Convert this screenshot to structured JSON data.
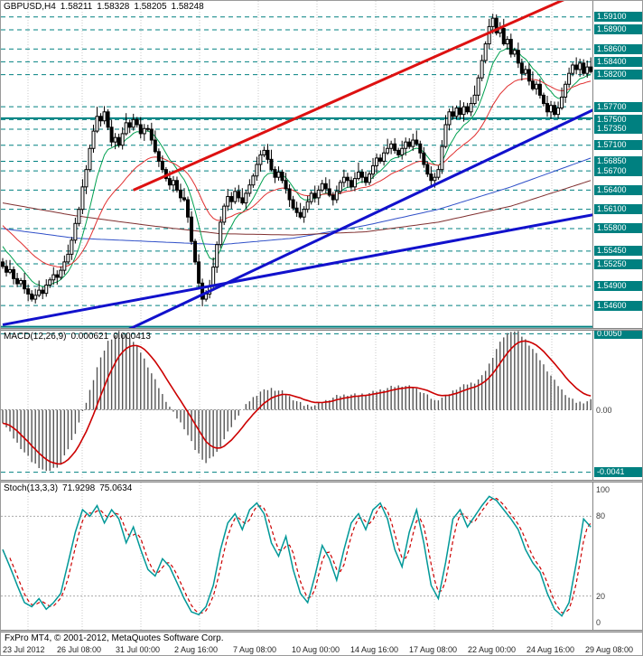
{
  "header": {
    "symbol": "GBPUSD,H4",
    "open": "1.58211",
    "high": "1.58328",
    "low": "1.58205",
    "close": "1.58248"
  },
  "indicators": {
    "macd": {
      "label": "MACD(12,26,9)",
      "value_main": "0.000621",
      "value_signal": "0.000413"
    },
    "stoch": {
      "label": "Stoch(13,3,3)",
      "value_main": "71.9298",
      "value_signal": "75.0634"
    }
  },
  "footer": {
    "copyright": "FxPro MT4, © 2001-2012, MetaQuotes Software Corp."
  },
  "time_axis": {
    "labels": [
      "23 Jul 2012",
      "26 Jul 08:00",
      "31 Jul 00:00",
      "2 Aug 16:00",
      "7 Aug 08:00",
      "10 Aug 00:00",
      "14 Aug 16:00",
      "17 Aug 08:00",
      "22 Aug 00:00",
      "24 Aug 16:00",
      "29 Aug 08:00"
    ]
  },
  "colors": {
    "level_teal": "#008080",
    "grid": "#c8c8c8",
    "bull": "#ffffff",
    "bear": "#000000",
    "wick": "#000000",
    "candle_border": "#000000",
    "trend_red": "#dd1111",
    "trend_blue": "#1111cc",
    "macd_hist": "#555555",
    "signal_red": "#cc0000",
    "stoch_main": "#009898",
    "axis_text": "#3a3a3a",
    "background": "#ffffff"
  },
  "chart_data": {
    "type": "candlestick",
    "symbol": "GBPUSD",
    "timeframe": "H4",
    "main": {
      "y_range": [
        1.5425,
        1.5935
      ],
      "first_open": 1.5528,
      "closes": [
        1.5521,
        1.5512,
        1.5516,
        1.5502,
        1.5494,
        1.5499,
        1.5486,
        1.5478,
        1.547,
        1.5476,
        1.5484,
        1.5479,
        1.5492,
        1.55,
        1.5508,
        1.5504,
        1.5515,
        1.5528,
        1.554,
        1.5562,
        1.5588,
        1.561,
        1.5645,
        1.5672,
        1.5705,
        1.5732,
        1.5755,
        1.5748,
        1.5762,
        1.5738,
        1.5715,
        1.5722,
        1.571,
        1.5728,
        1.5745,
        1.5738,
        1.575,
        1.5742,
        1.5728,
        1.5736,
        1.5735,
        1.5718,
        1.57,
        1.5685,
        1.5672,
        1.5658,
        1.5648,
        1.5655,
        1.564,
        1.5628,
        1.5625,
        1.5598,
        1.556,
        1.5528,
        1.5495,
        1.547,
        1.5478,
        1.549,
        1.552,
        1.5555,
        1.559,
        1.5615,
        1.563,
        1.5622,
        1.5638,
        1.5628,
        1.562,
        1.5635,
        1.5648,
        1.5662,
        1.568,
        1.5695,
        1.5702,
        1.5688,
        1.5672,
        1.566,
        1.5668,
        1.5655,
        1.5642,
        1.5625,
        1.5612,
        1.5605,
        1.5598,
        1.561,
        1.5622,
        1.5635,
        1.5628,
        1.564,
        1.565,
        1.5642,
        1.5632,
        1.5625,
        1.5638,
        1.5652,
        1.566,
        1.5655,
        1.5645,
        1.5658,
        1.5668,
        1.566,
        1.5652,
        1.5665,
        1.5678,
        1.569,
        1.5685,
        1.5698,
        1.5705,
        1.5712,
        1.5702,
        1.5695,
        1.5705,
        1.5715,
        1.5708,
        1.5718,
        1.5712,
        1.5698,
        1.568,
        1.5665,
        1.5655,
        1.566,
        1.5672,
        1.5708,
        1.5742,
        1.5762,
        1.5755,
        1.5768,
        1.5758,
        1.577,
        1.5762,
        1.5775,
        1.5788,
        1.5815,
        1.5842,
        1.5868,
        1.5895,
        1.5908,
        1.5885,
        1.5892,
        1.5868,
        1.5875,
        1.5852,
        1.5858,
        1.5838,
        1.5822,
        1.5828,
        1.581,
        1.5798,
        1.5805,
        1.5788,
        1.5775,
        1.5762,
        1.5772,
        1.5758,
        1.5768,
        1.5785,
        1.5805,
        1.5822,
        1.5835,
        1.5828,
        1.5838,
        1.5822,
        1.5832,
        1.58248
      ],
      "wick_pattern": [
        0.0006,
        0.001,
        0.0015,
        0.0005,
        0.0009,
        0.0004,
        0.0012,
        0.0007
      ],
      "levels_dashed": [
        "1.59100",
        "1.58900",
        "1.58600",
        "1.58400",
        "1.58200",
        "1.57700",
        "1.57500",
        "1.57350",
        "1.57100",
        "1.56850",
        "1.56700",
        "1.56400",
        "1.56100",
        "1.55800",
        "1.55450",
        "1.55250",
        "1.54900",
        "1.54600"
      ],
      "levels_solid": [
        1.5752,
        1.5427
      ],
      "trendlines": [
        {
          "color": "#1111cc",
          "width": 3,
          "from": [
            0,
            1.533
          ],
          "to": [
            163,
            1.5766
          ]
        },
        {
          "color": "#1111cc",
          "width": 3,
          "from": [
            0,
            1.543
          ],
          "to": [
            163,
            1.5602
          ]
        },
        {
          "color": "#dd1111",
          "width": 3,
          "from": [
            36,
            1.564
          ],
          "to": [
            163,
            1.5958
          ]
        }
      ],
      "emas": [
        {
          "period": 9,
          "seed": 1.556,
          "color": "#00a050",
          "width": 1
        },
        {
          "period": 25,
          "seed": 1.559,
          "color": "#e03030",
          "width": 1
        }
      ],
      "ma_lines": [
        {
          "color": "#3050c8",
          "width": 1,
          "points": [
            [
              0,
              1.558
            ],
            [
              20,
              1.5565
            ],
            [
              40,
              1.556
            ],
            [
              60,
              1.5555
            ],
            [
              80,
              1.5565
            ],
            [
              100,
              1.5585
            ],
            [
              120,
              1.561
            ],
            [
              140,
              1.5645
            ],
            [
              162,
              1.569
            ]
          ]
        },
        {
          "color": "#803030",
          "width": 1,
          "points": [
            [
              0,
              1.562
            ],
            [
              20,
              1.56
            ],
            [
              40,
              1.5585
            ],
            [
              60,
              1.5572
            ],
            [
              80,
              1.557
            ],
            [
              100,
              1.5575
            ],
            [
              120,
              1.559
            ],
            [
              140,
              1.5615
            ],
            [
              162,
              1.5655
            ]
          ]
        }
      ]
    },
    "macd": {
      "y_range": [
        -0.0046,
        0.0052
      ],
      "levels": [
        "0.0050",
        "-0.0041"
      ],
      "zero_label": "0.00",
      "keypoints": [
        [
          0,
          -0.0008
        ],
        [
          4,
          -0.0022
        ],
        [
          8,
          -0.0034
        ],
        [
          12,
          -0.0041
        ],
        [
          16,
          -0.0036
        ],
        [
          20,
          -0.0015
        ],
        [
          23,
          0.0005
        ],
        [
          26,
          0.0028
        ],
        [
          29,
          0.0045
        ],
        [
          32,
          0.0051
        ],
        [
          35,
          0.0048
        ],
        [
          38,
          0.0038
        ],
        [
          41,
          0.0024
        ],
        [
          44,
          0.001
        ],
        [
          47,
          -0.0002
        ],
        [
          50,
          -0.0012
        ],
        [
          53,
          -0.0026
        ],
        [
          56,
          -0.0035
        ],
        [
          59,
          -0.0028
        ],
        [
          62,
          -0.0015
        ],
        [
          65,
          -0.0003
        ],
        [
          68,
          0.0006
        ],
        [
          71,
          0.0012
        ],
        [
          74,
          0.0014
        ],
        [
          77,
          0.0012
        ],
        [
          80,
          0.0007
        ],
        [
          83,
          0.0003
        ],
        [
          86,
          0.0003
        ],
        [
          89,
          0.0006
        ],
        [
          92,
          0.0009
        ],
        [
          95,
          0.001
        ],
        [
          98,
          0.001
        ],
        [
          101,
          0.0011
        ],
        [
          104,
          0.0013
        ],
        [
          107,
          0.0015
        ],
        [
          110,
          0.0016
        ],
        [
          113,
          0.0015
        ],
        [
          116,
          0.0011
        ],
        [
          119,
          0.0006
        ],
        [
          122,
          0.0009
        ],
        [
          125,
          0.0014
        ],
        [
          128,
          0.0017
        ],
        [
          130,
          0.0018
        ],
        [
          132,
          0.0022
        ],
        [
          134,
          0.003
        ],
        [
          136,
          0.004
        ],
        [
          138,
          0.0048
        ],
        [
          140,
          0.0052
        ],
        [
          142,
          0.0051
        ],
        [
          144,
          0.0046
        ],
        [
          146,
          0.004
        ],
        [
          148,
          0.0033
        ],
        [
          150,
          0.0026
        ],
        [
          152,
          0.0019
        ],
        [
          154,
          0.0013
        ],
        [
          156,
          0.0008
        ],
        [
          158,
          0.0005
        ],
        [
          160,
          0.0005
        ],
        [
          162,
          0.00062
        ]
      ]
    },
    "stoch": {
      "y_range": [
        0,
        100
      ],
      "grid_levels": [
        80,
        20
      ],
      "axis_labels": [
        "100",
        "80",
        "20",
        "0"
      ],
      "keypoints": [
        [
          0,
          55
        ],
        [
          2,
          42
        ],
        [
          4,
          28
        ],
        [
          6,
          15
        ],
        [
          8,
          12
        ],
        [
          10,
          18
        ],
        [
          12,
          10
        ],
        [
          14,
          15
        ],
        [
          16,
          22
        ],
        [
          18,
          45
        ],
        [
          20,
          68
        ],
        [
          22,
          85
        ],
        [
          24,
          80
        ],
        [
          26,
          88
        ],
        [
          28,
          75
        ],
        [
          30,
          85
        ],
        [
          32,
          78
        ],
        [
          34,
          60
        ],
        [
          36,
          72
        ],
        [
          38,
          55
        ],
        [
          40,
          40
        ],
        [
          42,
          35
        ],
        [
          44,
          48
        ],
        [
          46,
          42
        ],
        [
          48,
          30
        ],
        [
          50,
          18
        ],
        [
          52,
          8
        ],
        [
          54,
          6
        ],
        [
          56,
          12
        ],
        [
          58,
          28
        ],
        [
          60,
          55
        ],
        [
          62,
          75
        ],
        [
          64,
          82
        ],
        [
          66,
          70
        ],
        [
          68,
          85
        ],
        [
          70,
          90
        ],
        [
          72,
          82
        ],
        [
          74,
          60
        ],
        [
          76,
          50
        ],
        [
          78,
          65
        ],
        [
          80,
          40
        ],
        [
          82,
          22
        ],
        [
          84,
          15
        ],
        [
          86,
          35
        ],
        [
          88,
          58
        ],
        [
          90,
          48
        ],
        [
          92,
          32
        ],
        [
          94,
          55
        ],
        [
          96,
          75
        ],
        [
          98,
          82
        ],
        [
          100,
          70
        ],
        [
          102,
          85
        ],
        [
          104,
          90
        ],
        [
          106,
          78
        ],
        [
          108,
          55
        ],
        [
          110,
          42
        ],
        [
          112,
          68
        ],
        [
          114,
          85
        ],
        [
          116,
          60
        ],
        [
          118,
          28
        ],
        [
          120,
          18
        ],
        [
          122,
          45
        ],
        [
          124,
          78
        ],
        [
          126,
          85
        ],
        [
          128,
          72
        ],
        [
          130,
          80
        ],
        [
          132,
          88
        ],
        [
          134,
          95
        ],
        [
          136,
          92
        ],
        [
          138,
          85
        ],
        [
          140,
          78
        ],
        [
          142,
          70
        ],
        [
          144,
          55
        ],
        [
          146,
          45
        ],
        [
          148,
          38
        ],
        [
          150,
          22
        ],
        [
          152,
          10
        ],
        [
          154,
          5
        ],
        [
          156,
          15
        ],
        [
          158,
          45
        ],
        [
          160,
          78
        ],
        [
          162,
          72
        ]
      ]
    }
  }
}
